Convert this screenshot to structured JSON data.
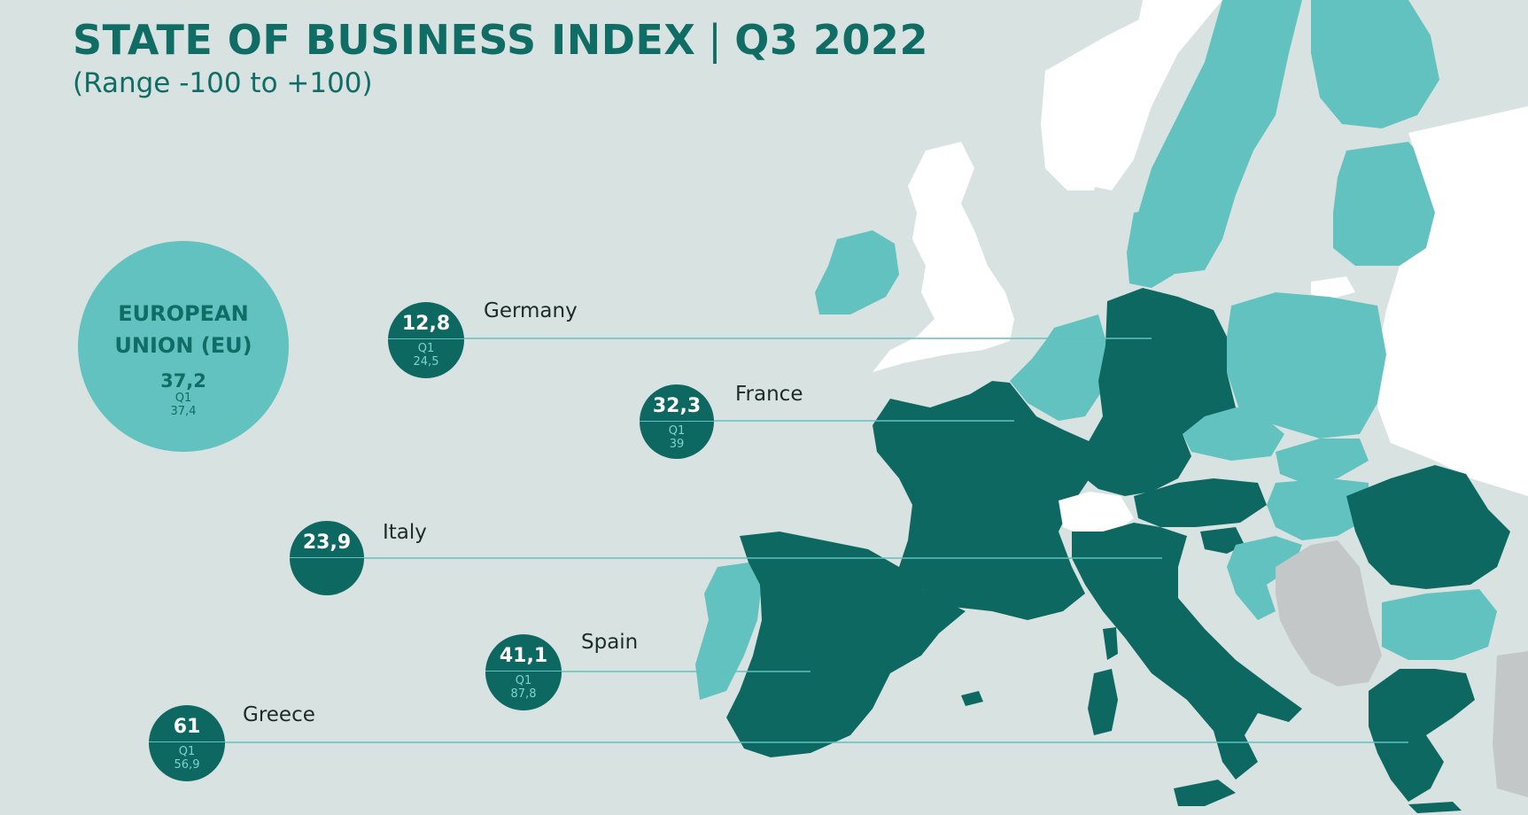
{
  "header": {
    "title": "STATE OF BUSINESS INDEX",
    "period": "Q3 2022",
    "subtitle": "(Range -100 to +100)"
  },
  "eu": {
    "name_line1": "EUROPEAN",
    "name_line2": "UNION (EU)",
    "value": "37,2",
    "q1_label": "Q1",
    "q1_value": "37,4"
  },
  "countries": [
    {
      "name": "Germany",
      "value": "12,8",
      "q1_label": "Q1",
      "q1_value": "24,5"
    },
    {
      "name": "France",
      "value": "32,3",
      "q1_label": "Q1",
      "q1_value": "39"
    },
    {
      "name": "Italy",
      "value": "23,9"
    },
    {
      "name": "Spain",
      "value": "41,1",
      "q1_label": "Q1",
      "q1_value": "87,8"
    },
    {
      "name": "Greece",
      "value": "61",
      "q1_label": "Q1",
      "q1_value": "56,9"
    }
  ],
  "colors": {
    "background": "#d8e2e1",
    "highlighted_country": "#0e6862",
    "other_eu_country": "#62c2c0",
    "non_eu_country": "#ffffff",
    "balkan_non_eu": "#c3c7c8",
    "title_text": "#0f6d66"
  }
}
